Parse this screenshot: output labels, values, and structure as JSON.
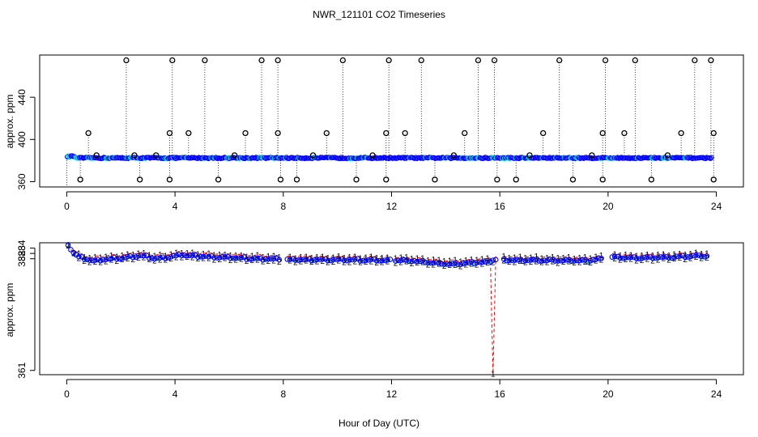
{
  "chart_data": {
    "type": "scatter",
    "title": "NWR_121101  CO2 Timeseries",
    "xlabel": "Hour of Day (UTC)",
    "xlim": [
      -1,
      25
    ],
    "xticks": [
      "0",
      "4",
      "8",
      "12",
      "16",
      "20",
      "24"
    ],
    "colors": {
      "black": "#000000",
      "blue": "#0000ff",
      "cyan": "#00cccc",
      "red": "#ff0000",
      "green": "#00cc00"
    },
    "panels": [
      {
        "name": "top",
        "ylabel": "approx. ppm",
        "ylim": [
          355,
          480
        ],
        "yticks": [
          "360",
          "400",
          "440"
        ],
        "baseline": 382.5,
        "high_outliers": [
          2.2,
          3.9,
          5.1,
          7.2,
          7.8,
          10.2,
          11.9,
          13.1,
          15.2,
          15.8,
          18.2,
          19.9,
          21.0,
          23.2,
          23.8
        ],
        "mid_outliers": [
          0.8,
          3.8,
          4.5,
          6.6,
          7.8,
          9.6,
          11.8,
          12.5,
          14.7,
          17.6,
          19.8,
          20.6,
          22.7,
          23.9
        ],
        "low_outliers": [
          0.5,
          2.7,
          3.8,
          5.6,
          7.9,
          8.5,
          10.7,
          11.8,
          13.6,
          15.9,
          16.6,
          18.7,
          19.8,
          21.6,
          23.9
        ],
        "small_bumps": [
          1.1,
          2.5,
          3.3,
          6.2,
          9.1,
          11.3,
          14.3,
          17.1,
          19.4,
          22.2
        ]
      },
      {
        "name": "bottom",
        "ylabel": "approx. ppm",
        "ylim": [
          360.2,
          385.0
        ],
        "yticks": [
          "361",
          "382",
          "383",
          "384"
        ],
        "series": [
          {
            "name": "1",
            "color": "#ff0000",
            "style": "dashed",
            "offset": 0.6
          },
          {
            "name": "2",
            "color": "#00cc00",
            "style": "dashed",
            "offset": -0.25
          },
          {
            "name": "3",
            "color": "#0000ff",
            "style": "markers",
            "offset": 0.0
          }
        ],
        "control_points": [
          [
            0.05,
            384.7
          ],
          [
            0.2,
            383.3
          ],
          [
            0.45,
            382.3
          ],
          [
            0.9,
            381.6
          ],
          [
            1.5,
            381.9
          ],
          [
            2.2,
            382.2
          ],
          [
            2.8,
            382.6
          ],
          [
            3.2,
            382.0
          ],
          [
            3.8,
            382.3
          ],
          [
            4.2,
            382.7
          ],
          [
            5.0,
            382.4
          ],
          [
            6.0,
            382.2
          ],
          [
            7.0,
            382.0
          ],
          [
            7.8,
            381.9
          ],
          [
            8.0,
            381.8
          ],
          [
            10.0,
            381.8
          ],
          [
            12.0,
            381.7
          ],
          [
            13.0,
            381.5
          ],
          [
            13.8,
            381.1
          ],
          [
            14.3,
            381.0
          ],
          [
            15.2,
            381.3
          ],
          [
            15.6,
            381.4
          ],
          [
            15.8,
            381.9
          ],
          [
            16.5,
            381.7
          ],
          [
            17.8,
            381.7
          ],
          [
            19.2,
            381.6
          ],
          [
            19.8,
            382.0
          ],
          [
            20.0,
            382.3
          ],
          [
            21.0,
            382.1
          ],
          [
            22.5,
            382.3
          ],
          [
            23.2,
            382.5
          ],
          [
            23.8,
            382.5
          ]
        ],
        "gap_hours": [
          [
            7.9,
            8.1
          ],
          [
            11.95,
            12.05
          ],
          [
            15.9,
            16.05
          ],
          [
            19.85,
            20.1
          ]
        ],
        "red_dip": [
          15.75,
          360.4
        ]
      }
    ]
  }
}
